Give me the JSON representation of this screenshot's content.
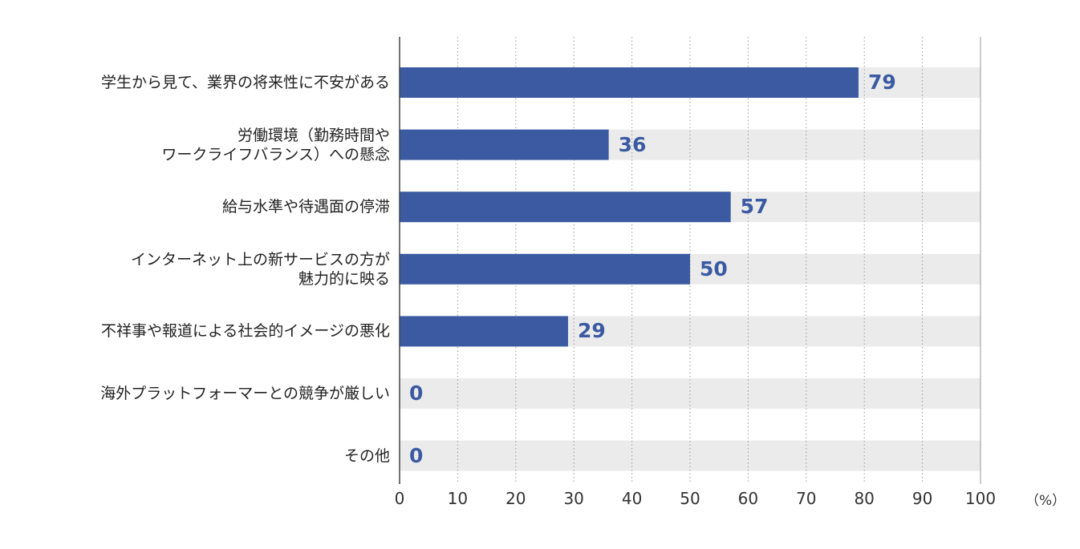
{
  "chart_data": {
    "type": "bar",
    "orientation": "horizontal",
    "categories": [
      [
        "学生から見て、業界の将来性に不安がある"
      ],
      [
        "労働環境（勤務時間や",
        "ワークライフバランス）への懸念"
      ],
      [
        "給与水準や待遇面の停滞"
      ],
      [
        "インターネット上の新サービスの方が",
        "魅力的に映る"
      ],
      [
        "不祥事や報道による社会的イメージの悪化"
      ],
      [
        "海外プラットフォーマーとの競争が厳しい"
      ],
      [
        "その他"
      ]
    ],
    "values": [
      79,
      36,
      57,
      50,
      29,
      0,
      0
    ],
    "xlim": [
      0,
      100
    ],
    "xticks": [
      0,
      10,
      20,
      30,
      40,
      50,
      60,
      70,
      80,
      90,
      100
    ],
    "unit": "（%）",
    "bar_color": "#3b5aa2",
    "track_color": "#ebebeb",
    "label_color": "#3b5aa2",
    "grid": true
  }
}
